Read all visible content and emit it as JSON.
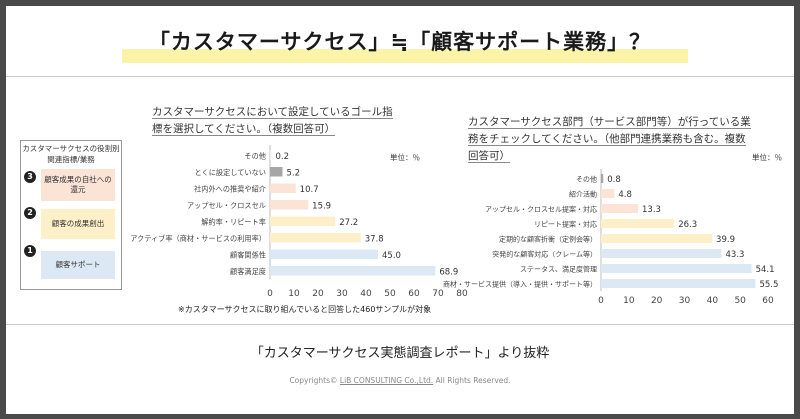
{
  "title": "「カスタマーサクセス」≒「顧客サポート業務」？",
  "legend": {
    "title": "カスタマーサクセスの役割別関連指標/業務",
    "items": [
      {
        "num": "3",
        "label": "顧客成果の自社への還元",
        "color": "#fbe3d6"
      },
      {
        "num": "2",
        "label": "顧客の成果創出",
        "color": "#fdf0c8"
      },
      {
        "num": "1",
        "label": "顧客サポート",
        "color": "#dce9f5"
      }
    ]
  },
  "left_chart": {
    "heading_line1": "カスタマーサクセスにおいて設定しているゴール指",
    "heading_line2": "標を選択してください。（複数回答可）",
    "unit": "単位：％",
    "note": "※カスタマーサクセスに取り組んでいると回答した460サンプルが対象"
  },
  "right_chart": {
    "heading_line1": "カスタマーサクセス部門（サービス部門等）が行っている業",
    "heading_line2": "務をチェックしてください。（他部門連携業務も含む。複数",
    "heading_line3": "回答可）",
    "unit": "単位：％"
  },
  "source": "「カスタマーサクセス実態調査レポート」より抜粋",
  "copyright": {
    "prefix": "Copyrights© ",
    "brand": "LiB CONSULTING Co.,Ltd.",
    "suffix": "  All Rights Reserved."
  },
  "chart_data": [
    {
      "type": "bar",
      "orientation": "horizontal",
      "categories": [
        "その他",
        "とくに設定していない",
        "社内外への推奨や紹介",
        "アップセル・クロスセル",
        "解約率・リピート率",
        "アクティブ率（商材・サービスの利用率）",
        "顧客関係性",
        "顧客満足度"
      ],
      "values": [
        0.2,
        5.2,
        10.7,
        15.9,
        27.2,
        37.8,
        45.0,
        68.9
      ],
      "value_labels": [
        "0.2",
        "5.2",
        "10.7",
        "15.9",
        "27.2",
        "37.8",
        "45.0",
        "68.9"
      ],
      "colors": [
        "#f2f2f2",
        "#a6a6a6",
        "#fbe3d6",
        "#fbe3d6",
        "#fdf0c8",
        "#fdf0c8",
        "#dce9f5",
        "#dce9f5"
      ],
      "xlim": [
        0,
        80
      ],
      "xticks": [
        "0",
        "10",
        "20",
        "30",
        "40",
        "50",
        "60",
        "70",
        "80"
      ],
      "grid": false
    },
    {
      "type": "bar",
      "orientation": "horizontal",
      "categories": [
        "その他",
        "紹介活動",
        "アップセル・クロスセル提案・対応",
        "リピート提案・対応",
        "定期的な顧客折衝（定例会等）",
        "突発的な顧客対応（クレーム等）",
        "ステータス、満足度管理",
        "商材・サービス提供（導入・提供・サポート等）"
      ],
      "values": [
        0.8,
        4.8,
        13.3,
        26.3,
        39.9,
        43.3,
        54.1,
        55.5
      ],
      "value_labels": [
        "0.8",
        "4.8",
        "13.3",
        "26.3",
        "39.9",
        "43.3",
        "54.1",
        "55.5"
      ],
      "colors": [
        "#a6a6a6",
        "#fbe3d6",
        "#fbe3d6",
        "#fdf0c8",
        "#fdf0c8",
        "#dce9f5",
        "#dce9f5",
        "#dce9f5"
      ],
      "xlim": [
        0,
        60
      ],
      "xticks": [
        "0",
        "10",
        "20",
        "30",
        "40",
        "50",
        "60"
      ],
      "grid": false
    }
  ]
}
